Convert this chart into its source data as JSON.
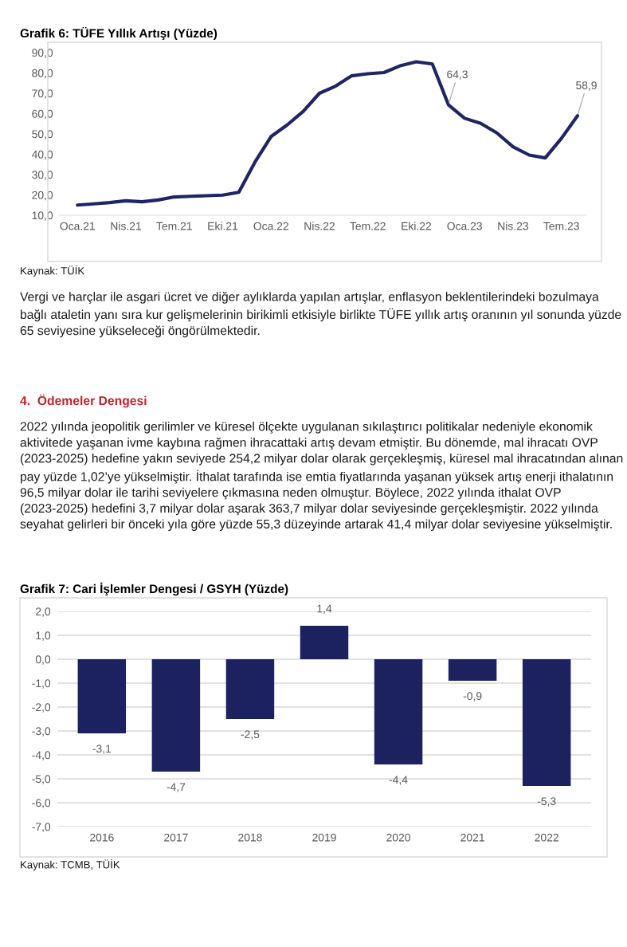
{
  "chart_data": [
    {
      "type": "line",
      "title": "Grafik 6: TÜFE Yıllık Artışı (Yüzde)",
      "categories": [
        "Oca.21",
        null,
        null,
        "Nis.21",
        null,
        null,
        "Tem.21",
        null,
        null,
        "Eki.21",
        null,
        null,
        "Oca.22",
        null,
        null,
        "Nis.22",
        null,
        null,
        "Tem.22",
        null,
        null,
        "Eki.22",
        null,
        null,
        "Oca.23",
        null,
        null,
        "Nis.23",
        null,
        null,
        "Tem.23",
        null
      ],
      "series": [
        {
          "color": "#1f2562",
          "values": [
            15.0,
            15.6,
            16.2,
            17.1,
            16.6,
            17.5,
            19.0,
            19.3,
            19.6,
            19.9,
            21.3,
            36.1,
            48.7,
            54.4,
            61.1,
            70.0,
            73.5,
            78.6,
            79.6,
            80.2,
            83.5,
            85.5,
            84.4,
            64.3,
            57.7,
            55.2,
            50.5,
            43.7,
            39.6,
            38.2,
            47.8,
            58.9
          ],
          "value_labels": [
            null,
            null,
            null,
            null,
            null,
            null,
            null,
            null,
            null,
            null,
            null,
            null,
            null,
            null,
            null,
            null,
            null,
            null,
            null,
            null,
            null,
            null,
            null,
            "64,3",
            null,
            null,
            null,
            null,
            null,
            null,
            null,
            "58,9"
          ]
        }
      ],
      "ylim": [
        10,
        90
      ],
      "yticks": [
        {
          "value": 10,
          "label": "10,0"
        },
        {
          "value": 20,
          "label": "20,0"
        },
        {
          "value": 30,
          "label": "30,0"
        },
        {
          "value": 40,
          "label": "40,0"
        },
        {
          "value": 50,
          "label": "50,0"
        },
        {
          "value": 60,
          "label": "60,0"
        },
        {
          "value": 70,
          "label": "70,0"
        },
        {
          "value": 80,
          "label": "80,0"
        },
        {
          "value": 90,
          "label": "90,0"
        }
      ],
      "grid": false,
      "marker": "none",
      "line_style": "solid",
      "annotations": [
        "Kaynak: TÜİK",
        "Vergi ve harçlar ile asgari ücret ve diğer aylıklarda yapılan artışlar, enflasyon beklentilerindeki bozulmaya bağlı ataletin yanı sıra kur gelişmelerinin birikimli etkisiyle birlikte TÜFE yıllık artış oranının yıl sonunda yüzde 65 seviyesine yükseleceği öngörülmektedir."
      ]
    },
    {
      "type": "bar",
      "title": "Grafik 7: Cari İşlemler Dengesi / GSYH (Yüzde)",
      "categories": [
        "2016",
        "2017",
        "2018",
        "2019",
        "2020",
        "2021",
        "2022"
      ],
      "values": [
        -3.1,
        -4.7,
        -2.5,
        1.4,
        -4.4,
        -0.9,
        -5.3
      ],
      "value_labels": [
        "-3,1",
        "-4,7",
        "-2,5",
        "1,4",
        "-4,4",
        "-0,9",
        "-5,3"
      ],
      "color": "#1c2260",
      "ylim": [
        -7,
        2
      ],
      "yticks": [
        {
          "value": -7,
          "label": "-7,0"
        },
        {
          "value": -6,
          "label": "-6,0"
        },
        {
          "value": -5,
          "label": "-5,0"
        },
        {
          "value": -4,
          "label": "-4,0"
        },
        {
          "value": -3,
          "label": "-3,0"
        },
        {
          "value": -2,
          "label": "-2,0"
        },
        {
          "value": -1,
          "label": "-1,0"
        },
        {
          "value": 0,
          "label": "0,0"
        },
        {
          "value": 1,
          "label": "1,0"
        },
        {
          "value": 2,
          "label": "2,0"
        }
      ],
      "grid": "y",
      "annotations": [
        "4.  Ödemeler Dengesi",
        "2022 yılında jeopolitik gerilimler ve küresel ölçekte uygulanan sıkılaştırıcı politikalar nedeniyle ekonomik aktivitede yaşanan ivme kaybına rağmen ihracattaki artış devam etmiştir. Bu dönemde, mal ihracatı OVP (2023-2025) hedefine yakın seviyede 254,2 milyar dolar olarak gerçekleşmiş, küresel mal ihracatından alınan pay yüzde 1,02’ye yükselmiştir. İthalat tarafında ise emtia fiyatlarında yaşanan yüksek artış enerji ithalatının 96,5 milyar dolar ile tarihi seviyelere çıkmasına neden olmuştur. Böylece, 2022 yılında ithalat OVP (2023-2025) hedefini 3,7 milyar dolar aşarak 363,7 milyar dolar seviyesinde gerçekleşmiştir. 2022 yılında seyahat gelirleri bir önceki yıla göre yüzde 55,3 düzeyinde artarak 41,4 milyar dolar seviyesine yükselmiştir.",
        "Kaynak: TCMB, TÜİK"
      ]
    }
  ]
}
